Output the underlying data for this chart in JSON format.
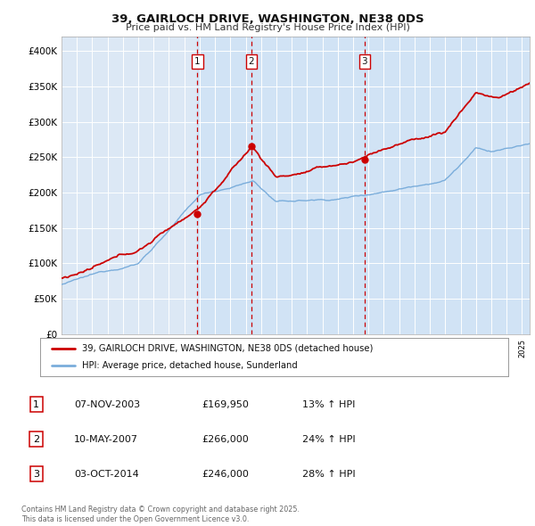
{
  "title": "39, GAIRLOCH DRIVE, WASHINGTON, NE38 0DS",
  "subtitle": "Price paid vs. HM Land Registry's House Price Index (HPI)",
  "background_color": "#ffffff",
  "plot_bg_color": "#dce8f5",
  "grid_color": "#ffffff",
  "ylim": [
    0,
    420000
  ],
  "yticks": [
    0,
    50000,
    100000,
    150000,
    200000,
    250000,
    300000,
    350000,
    400000
  ],
  "ytick_labels": [
    "£0",
    "£50K",
    "£100K",
    "£150K",
    "£200K",
    "£250K",
    "£300K",
    "£350K",
    "£400K"
  ],
  "xlim_start": 1995.0,
  "xlim_end": 2025.5,
  "sale_dates": [
    2003.85,
    2007.36,
    2014.75
  ],
  "sale_prices": [
    169950,
    266000,
    246000
  ],
  "sale_labels": [
    "1",
    "2",
    "3"
  ],
  "legend_line1": "39, GAIRLOCH DRIVE, WASHINGTON, NE38 0DS (detached house)",
  "legend_line2": "HPI: Average price, detached house, Sunderland",
  "table_entries": [
    [
      "1",
      "07-NOV-2003",
      "£169,950",
      "13% ↑ HPI"
    ],
    [
      "2",
      "10-MAY-2007",
      "£266,000",
      "24% ↑ HPI"
    ],
    [
      "3",
      "03-OCT-2014",
      "£246,000",
      "28% ↑ HPI"
    ]
  ],
  "footer": "Contains HM Land Registry data © Crown copyright and database right 2025.\nThis data is licensed under the Open Government Licence v3.0.",
  "hpi_color": "#7aaddb",
  "price_color": "#cc0000",
  "vline_color": "#cc0000",
  "shade_color": "#c8dff5",
  "dot_color": "#cc0000"
}
